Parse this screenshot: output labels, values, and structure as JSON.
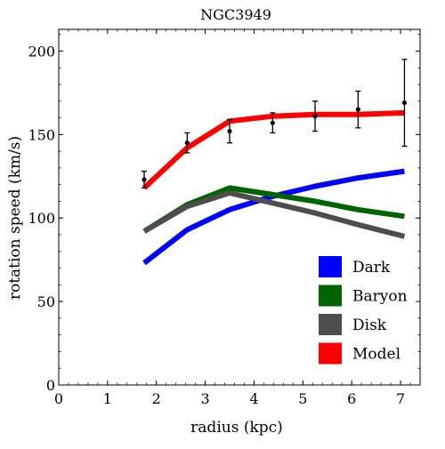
{
  "chart_data": {
    "type": "line",
    "title": "NGC3949",
    "xlabel": "radius (kpc)",
    "ylabel": "rotation speed (km/s)",
    "xlim": [
      0,
      7.4
    ],
    "ylim": [
      0,
      213
    ],
    "x_ticks": [
      0,
      1,
      2,
      3,
      4,
      5,
      6,
      7
    ],
    "y_ticks": [
      0,
      50,
      100,
      150,
      200
    ],
    "x_minor_step": 0.2,
    "y_minor_step": 10,
    "grid": false,
    "legend_placement": "bottom-right",
    "series": [
      {
        "name": "Dark",
        "color": "#0000ff",
        "x": [
          1.75,
          2.63,
          3.5,
          4.38,
          5.25,
          6.13,
          7.08
        ],
        "values": [
          73,
          93,
          105,
          113,
          119,
          124,
          128
        ]
      },
      {
        "name": "Baryon",
        "color": "#006400",
        "x": [
          1.75,
          2.63,
          3.5,
          4.38,
          5.25,
          6.13,
          7.08
        ],
        "values": [
          92,
          108,
          118,
          114,
          110,
          105,
          101
        ]
      },
      {
        "name": "Disk",
        "color": "#4d4d4d",
        "x": [
          1.75,
          2.63,
          3.5,
          4.38,
          5.25,
          6.13,
          7.08
        ],
        "values": [
          92,
          107,
          115,
          109,
          103,
          96,
          89
        ]
      },
      {
        "name": "Model",
        "color": "#ff0000",
        "x": [
          1.75,
          2.63,
          3.5,
          4.38,
          5.25,
          6.13,
          7.08
        ],
        "values": [
          118,
          142,
          158,
          161,
          162,
          162,
          163
        ]
      }
    ],
    "observations": {
      "color": "#000000",
      "x": [
        1.75,
        2.63,
        3.5,
        4.38,
        5.25,
        6.13,
        7.08
      ],
      "y": [
        123,
        145,
        152,
        157,
        161,
        165,
        169
      ],
      "err": [
        5,
        6,
        7,
        6,
        9,
        11,
        26
      ]
    }
  }
}
